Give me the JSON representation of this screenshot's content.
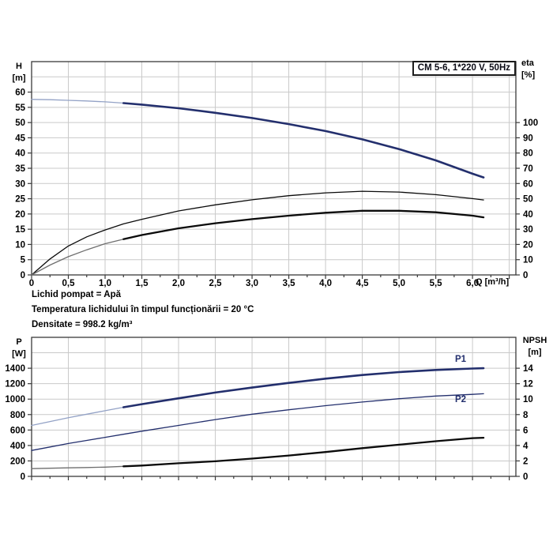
{
  "title_box": {
    "label": "CM 5-6, 1*220 V, 50Hz"
  },
  "axis_titles": {
    "h": [
      "H",
      "[m]"
    ],
    "eta": [
      "eta",
      "[%]"
    ],
    "p": [
      "P",
      "[W]"
    ],
    "npsh": [
      "NPSH",
      "[m]"
    ],
    "q": "Q [m³/h]"
  },
  "annotations": {
    "line1": "Lichid pompat = Apă",
    "line2": "Temperatura lichidului în timpul funcționării = 20 °C",
    "line3": "Densitate = 998.2 kg/m³"
  },
  "colors": {
    "curve_navy": "#232f6d",
    "curve_navy_thin": "#93a2c6",
    "curve_black": "#0a0a0a",
    "curve_black_thin": "#6e6e6e",
    "grid": "#c9c9c9",
    "frame": "#3a3a3a",
    "text": "#000000"
  },
  "chart_data": [
    {
      "type": "line",
      "name": "hq-eta-chart",
      "title": "CM 5-6, 1*220 V, 50Hz",
      "x_axis": {
        "label": "Q [m³/h]",
        "min": 0,
        "max": 6.59,
        "major_tick": 0.5,
        "minor_tick": 0.25,
        "tick_labels": [
          "0",
          "0,5",
          "1,0",
          "1,5",
          "2,0",
          "2,5",
          "3,0",
          "3,5",
          "4,0",
          "4,5",
          "5,0",
          "5,5",
          "6,0"
        ]
      },
      "y_left": {
        "label": "H [m]",
        "min": 0,
        "max": 70,
        "tick_step": 5,
        "tick_labels": [
          "0",
          "5",
          "10",
          "15",
          "20",
          "25",
          "30",
          "35",
          "40",
          "45",
          "50",
          "55",
          "60"
        ]
      },
      "y_right": {
        "label": "eta [%]",
        "min": 0,
        "max": 140,
        "tick_step": 10,
        "tick_labels": [
          "0",
          "10",
          "20",
          "30",
          "40",
          "50",
          "60",
          "70",
          "80",
          "90",
          "100"
        ]
      },
      "grid": true,
      "x_samples": [
        0,
        0.25,
        0.5,
        0.75,
        1,
        1.25,
        1.5,
        2,
        2.5,
        3,
        3.5,
        4,
        4.5,
        5,
        5.5,
        6,
        6.15
      ],
      "series": [
        {
          "name": "head-curve",
          "label": "",
          "axis": "left",
          "color": "navy",
          "width": 2.6,
          "thin_until": 1.25,
          "values": [
            57.6,
            57.5,
            57.3,
            57.1,
            56.8,
            56.4,
            55.9,
            54.7,
            53.2,
            51.5,
            49.5,
            47.2,
            44.5,
            41.3,
            37.6,
            33.2,
            32.0
          ]
        },
        {
          "name": "eta-pump-curve",
          "label": "",
          "axis": "right",
          "color": "black",
          "width": 1.3,
          "thin_until": 0,
          "values": [
            0,
            10.5,
            19,
            25,
            29.5,
            33.5,
            36.5,
            42,
            46,
            49.3,
            52,
            53.9,
            54.9,
            54.4,
            52.7,
            50.1,
            49.2
          ]
        },
        {
          "name": "eta-total-curve",
          "label": "",
          "axis": "right",
          "color": "black",
          "width": 2.3,
          "thin_until": 1.25,
          "values": [
            0,
            6.5,
            12,
            16.5,
            20.5,
            23.5,
            26.2,
            30.6,
            33.9,
            36.6,
            38.9,
            40.8,
            42.1,
            42.1,
            41.1,
            38.9,
            37.8
          ]
        }
      ]
    },
    {
      "type": "line",
      "name": "power-npsh-chart",
      "title": "",
      "x_axis": {
        "label": "",
        "min": 0,
        "max": 6.59,
        "major_tick": 0.5,
        "minor_tick": 0.25,
        "tick_labels": []
      },
      "y_left": {
        "label": "P [W]",
        "min": 0,
        "max": 1800,
        "tick_step": 200,
        "tick_labels": [
          "0",
          "200",
          "400",
          "600",
          "800",
          "1000",
          "1200",
          "1400"
        ]
      },
      "y_right": {
        "label": "NPSH [m]",
        "min": 0,
        "max": 18,
        "tick_step": 2,
        "tick_labels": [
          "0",
          "2",
          "4",
          "6",
          "8",
          "10",
          "12",
          "14"
        ]
      },
      "grid": true,
      "x_samples": [
        0,
        0.25,
        0.5,
        0.75,
        1,
        1.25,
        1.5,
        2,
        2.5,
        3,
        3.5,
        4,
        4.5,
        5,
        5.5,
        6,
        6.15
      ],
      "series": [
        {
          "name": "p1-curve",
          "label": "P1",
          "axis": "left",
          "color": "navy",
          "width": 2.6,
          "thin_until": 1.25,
          "values": [
            660,
            710,
            760,
            805,
            850,
            895,
            935,
            1010,
            1085,
            1150,
            1210,
            1265,
            1312,
            1350,
            1378,
            1396,
            1400
          ]
        },
        {
          "name": "p2-curve",
          "label": "P2",
          "axis": "left",
          "color": "navy",
          "width": 1.3,
          "thin_until": 0,
          "values": [
            335,
            380,
            425,
            465,
            505,
            545,
            585,
            660,
            735,
            805,
            862,
            915,
            962,
            1005,
            1040,
            1062,
            1070
          ]
        },
        {
          "name": "npsh-curve",
          "label": "",
          "axis": "right",
          "color": "black",
          "width": 2.3,
          "thin_until": 1.25,
          "values": [
            1.0,
            1.05,
            1.1,
            1.15,
            1.2,
            1.3,
            1.4,
            1.7,
            1.95,
            2.3,
            2.7,
            3.15,
            3.65,
            4.1,
            4.55,
            4.95,
            5.0
          ]
        }
      ]
    }
  ]
}
